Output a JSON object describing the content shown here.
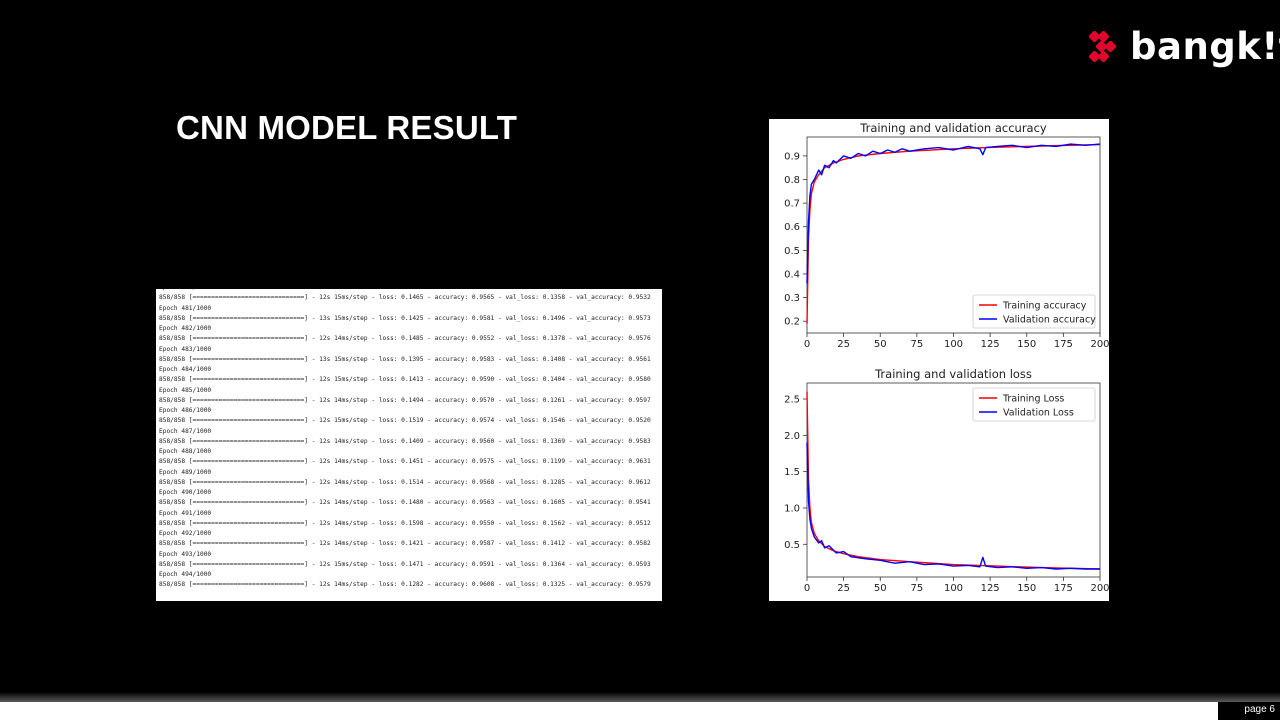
{
  "logo": {
    "text": "bangk!t"
  },
  "slide": {
    "title": "CNN MODEL RESULT",
    "page": "page 6"
  },
  "log_lines": [
    "Epoch 480/1000",
    "858/858 [==============================] - 12s 15ms/step - loss: 0.1465 - accuracy: 0.9565 - val_loss: 0.1358 - val_accuracy: 0.9532",
    "Epoch 481/1000",
    "858/858 [==============================] - 13s 15ms/step - loss: 0.1425 - accuracy: 0.9581 - val_loss: 0.1496 - val_accuracy: 0.9573",
    "Epoch 482/1000",
    "858/858 [==============================] - 12s 14ms/step - loss: 0.1485 - accuracy: 0.9552 - val_loss: 0.1378 - val_accuracy: 0.9576",
    "Epoch 483/1000",
    "858/858 [==============================] - 13s 15ms/step - loss: 0.1395 - accuracy: 0.9583 - val_loss: 0.1408 - val_accuracy: 0.9561",
    "Epoch 484/1000",
    "858/858 [==============================] - 12s 15ms/step - loss: 0.1413 - accuracy: 0.9590 - val_loss: 0.1404 - val_accuracy: 0.9580",
    "Epoch 485/1000",
    "858/858 [==============================] - 12s 14ms/step - loss: 0.1494 - accuracy: 0.9570 - val_loss: 0.1261 - val_accuracy: 0.9597",
    "Epoch 486/1000",
    "858/858 [==============================] - 12s 15ms/step - loss: 0.1519 - accuracy: 0.9574 - val_loss: 0.1546 - val_accuracy: 0.9520",
    "Epoch 487/1000",
    "858/858 [==============================] - 12s 14ms/step - loss: 0.1409 - accuracy: 0.9560 - val_loss: 0.1369 - val_accuracy: 0.9583",
    "Epoch 488/1000",
    "858/858 [==============================] - 12s 14ms/step - loss: 0.1451 - accuracy: 0.9575 - val_loss: 0.1199 - val_accuracy: 0.9631",
    "Epoch 489/1000",
    "858/858 [==============================] - 12s 14ms/step - loss: 0.1514 - accuracy: 0.9568 - val_loss: 0.1285 - val_accuracy: 0.9612",
    "Epoch 490/1000",
    "858/858 [==============================] - 12s 14ms/step - loss: 0.1480 - accuracy: 0.9563 - val_loss: 0.1605 - val_accuracy: 0.9541",
    "Epoch 491/1000",
    "858/858 [==============================] - 12s 14ms/step - loss: 0.1598 - accuracy: 0.9550 - val_loss: 0.1562 - val_accuracy: 0.9512",
    "Epoch 492/1000",
    "858/858 [==============================] - 12s 14ms/step - loss: 0.1421 - accuracy: 0.9587 - val_loss: 0.1412 - val_accuracy: 0.9582",
    "Epoch 493/1000",
    "858/858 [==============================] - 12s 15ms/step - loss: 0.1471 - accuracy: 0.9591 - val_loss: 0.1364 - val_accuracy: 0.9593",
    "Epoch 494/1000",
    "858/858 [==============================] - 12s 14ms/step - loss: 0.1282 - accuracy: 0.9608 - val_loss: 0.1325 - val_accuracy: 0.9579"
  ],
  "chart_data": [
    {
      "type": "line",
      "title": "Training and validation accuracy",
      "xlim": [
        0,
        200
      ],
      "ylim": [
        0.15,
        0.98
      ],
      "x_ticks": [
        0,
        25,
        50,
        75,
        100,
        125,
        150,
        175,
        200
      ],
      "y_ticks": [
        0.2,
        0.3,
        0.4,
        0.5,
        0.6,
        0.7,
        0.8,
        0.9
      ],
      "legend_position": "lower-right",
      "series": [
        {
          "name": "Training accuracy",
          "color": "#ff0000",
          "x": [
            0,
            1,
            2,
            3,
            5,
            8,
            12,
            18,
            25,
            35,
            50,
            70,
            100,
            130,
            160,
            200
          ],
          "y": [
            0.19,
            0.55,
            0.67,
            0.74,
            0.79,
            0.82,
            0.85,
            0.87,
            0.885,
            0.9,
            0.91,
            0.92,
            0.93,
            0.937,
            0.942,
            0.948
          ]
        },
        {
          "name": "Validation accuracy",
          "color": "#0000ff",
          "x": [
            0,
            1,
            2,
            3,
            5,
            8,
            10,
            12,
            15,
            18,
            20,
            25,
            30,
            35,
            40,
            45,
            50,
            55,
            60,
            65,
            70,
            80,
            90,
            100,
            110,
            118,
            120,
            122,
            130,
            140,
            150,
            160,
            170,
            180,
            190,
            200
          ],
          "y": [
            0.36,
            0.62,
            0.73,
            0.78,
            0.8,
            0.84,
            0.82,
            0.86,
            0.85,
            0.88,
            0.87,
            0.9,
            0.89,
            0.91,
            0.9,
            0.92,
            0.91,
            0.925,
            0.915,
            0.93,
            0.92,
            0.93,
            0.935,
            0.925,
            0.94,
            0.93,
            0.905,
            0.935,
            0.94,
            0.945,
            0.935,
            0.945,
            0.94,
            0.95,
            0.945,
            0.95
          ]
        }
      ]
    },
    {
      "type": "line",
      "title": "Training and validation loss",
      "xlim": [
        0,
        200
      ],
      "ylim": [
        0.05,
        2.72
      ],
      "x_ticks": [
        0,
        25,
        50,
        75,
        100,
        125,
        150,
        175,
        200
      ],
      "y_ticks": [
        0.5,
        1.0,
        1.5,
        2.0,
        2.5
      ],
      "legend_position": "upper-right",
      "series": [
        {
          "name": "Training Loss",
          "color": "#ff0000",
          "x": [
            0,
            1,
            2,
            3,
            5,
            8,
            12,
            18,
            25,
            35,
            50,
            70,
            100,
            130,
            160,
            200
          ],
          "y": [
            2.6,
            1.4,
            1.0,
            0.8,
            0.65,
            0.55,
            0.47,
            0.41,
            0.37,
            0.33,
            0.29,
            0.26,
            0.22,
            0.2,
            0.18,
            0.16
          ]
        },
        {
          "name": "Validation Loss",
          "color": "#0000ff",
          "x": [
            0,
            1,
            2,
            3,
            5,
            8,
            10,
            12,
            15,
            20,
            25,
            30,
            40,
            50,
            60,
            70,
            80,
            90,
            100,
            110,
            118,
            120,
            122,
            130,
            140,
            150,
            160,
            170,
            180,
            190,
            200
          ],
          "y": [
            1.9,
            1.1,
            0.85,
            0.72,
            0.6,
            0.52,
            0.55,
            0.45,
            0.48,
            0.38,
            0.4,
            0.33,
            0.3,
            0.28,
            0.24,
            0.26,
            0.22,
            0.23,
            0.2,
            0.21,
            0.19,
            0.32,
            0.2,
            0.18,
            0.19,
            0.17,
            0.18,
            0.16,
            0.17,
            0.16,
            0.16
          ]
        }
      ]
    }
  ]
}
